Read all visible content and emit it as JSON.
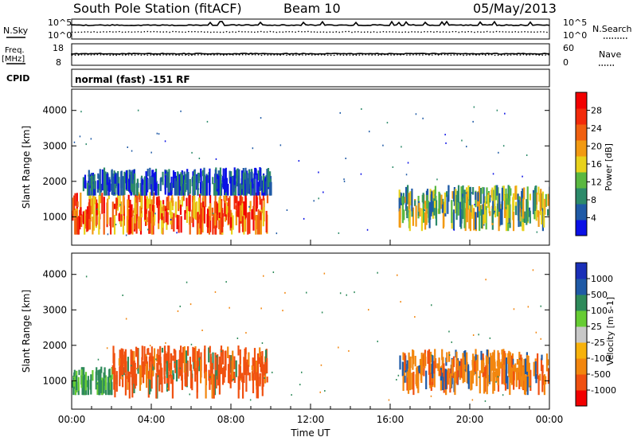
{
  "header": {
    "station": "South Pole Station (fitACF)",
    "beam": "Beam 10",
    "date": "05/May/2013"
  },
  "mini_panels": {
    "nsky_label": "N.Sky",
    "nsky_top": "10^5",
    "nsky_bottom": "10^0",
    "nsearch_label": "N.Search",
    "nsearch_top": "10^5",
    "nsearch_bottom": "10^0",
    "freq_label_line1": "Freq.",
    "freq_label_line2": "[MHz]",
    "freq_top": "18",
    "freq_bottom": "8",
    "nave_label": "Nave",
    "nave_top": "60",
    "nave_bottom": "0",
    "cpid_label": "CPID",
    "cpid_text": "normal (fast) -151 RF"
  },
  "colors": {
    "power_scale": [
      "#0a10e6",
      "#1f5aa6",
      "#2c8a6a",
      "#5ab840",
      "#e8d21c",
      "#f29a12",
      "#f06010",
      "#f22a0a",
      "#f20000"
    ],
    "velocity_scale": [
      "#f20000",
      "#f05010",
      "#f2860e",
      "#f7b20c",
      "#c8c8c8",
      "#66cc33",
      "#2e8a5a",
      "#1f5aa6",
      "#1a2fb8"
    ]
  },
  "chart_data": [
    {
      "type": "heatmap",
      "title": "Power",
      "ylabel": "Slant Range [km]",
      "yticks": [
        1000,
        2000,
        3000,
        4000
      ],
      "ylim": [
        200,
        4600
      ],
      "xlim_hours": [
        0,
        24
      ],
      "colorbar": {
        "label": "Power [dB]",
        "ticks": [
          "4",
          "8",
          "12",
          "16",
          "20",
          "24",
          "28"
        ],
        "range": [
          0,
          32
        ]
      },
      "echo_regions": [
        {
          "t_start_h": 0.0,
          "t_end_h": 9.8,
          "range_km_min": 500,
          "range_km_max": 1700,
          "level": "strong (20-28 dB)"
        },
        {
          "t_start_h": 0.5,
          "t_end_h": 10.0,
          "range_km_min": 1600,
          "range_km_max": 2400,
          "level": "weak (4-12 dB)"
        },
        {
          "t_start_h": 16.4,
          "t_end_h": 24.0,
          "range_km_min": 600,
          "range_km_max": 1900,
          "level": "moderate (8-20 dB)"
        }
      ]
    },
    {
      "type": "heatmap",
      "title": "Velocity",
      "ylabel": "Slant Range [km]",
      "xlabel": "Time UT",
      "xticks": [
        "00:00",
        "04:00",
        "08:00",
        "12:00",
        "16:00",
        "20:00",
        "00:00"
      ],
      "yticks": [
        1000,
        2000,
        3000,
        4000
      ],
      "ylim": [
        200,
        4600
      ],
      "xlim_hours": [
        0,
        24
      ],
      "colorbar": {
        "label": "Velocity [m s-1]",
        "ticks": [
          "1000",
          "500",
          "100",
          "25",
          "-25",
          "-100",
          "-500",
          "-1000"
        ]
      },
      "echo_regions": [
        {
          "t_start_h": 0.0,
          "t_end_h": 2.0,
          "range_km_min": 600,
          "range_km_max": 1400,
          "level": "slow (25-100 m/s)"
        },
        {
          "t_start_h": 2.0,
          "t_end_h": 9.8,
          "range_km_min": 500,
          "range_km_max": 2000,
          "level": "away (-100 to -500 m/s)"
        },
        {
          "t_start_h": 16.4,
          "t_end_h": 24.0,
          "range_km_min": 600,
          "range_km_max": 1900,
          "level": "away (-100 to -500 m/s)"
        }
      ]
    }
  ]
}
